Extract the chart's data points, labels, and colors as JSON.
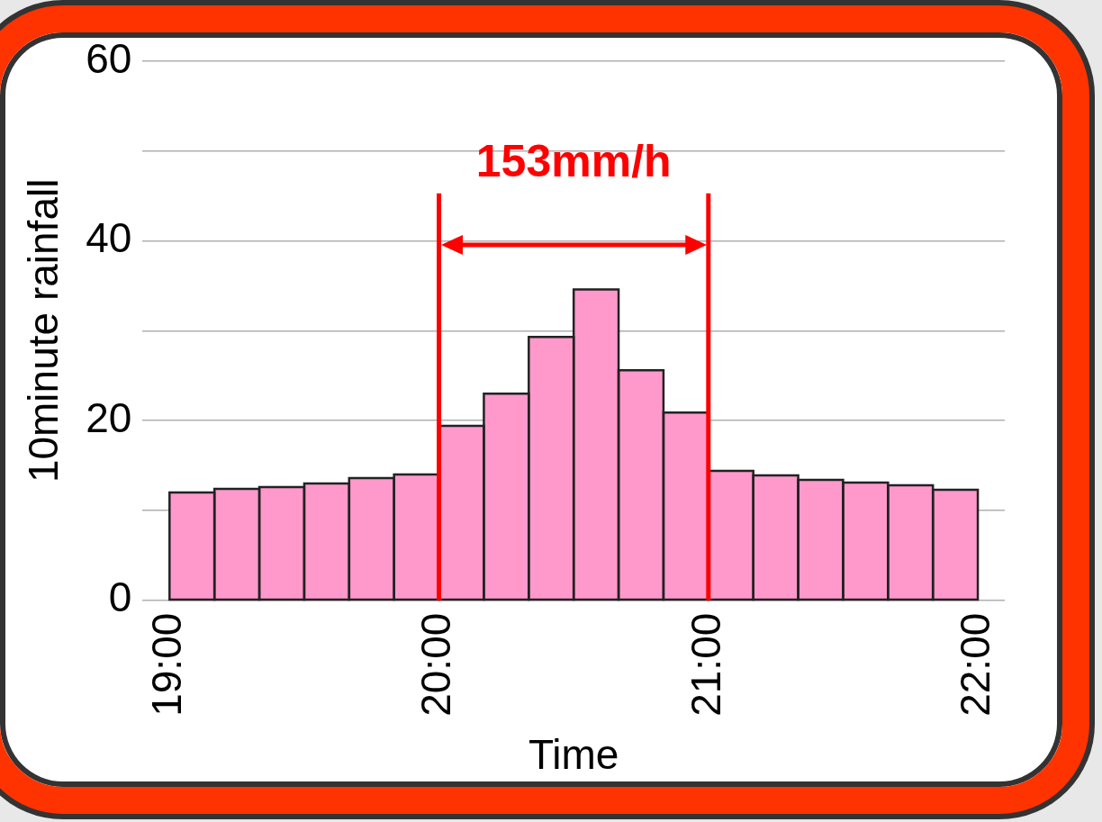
{
  "chart_data": {
    "type": "histogram",
    "xlabel": "Time",
    "ylabel": "10minute rainfall",
    "bins": [
      19,
      19.1667,
      19.3333,
      19.5,
      19.6667,
      19.8333,
      20,
      20.1667,
      20.3333,
      20.5,
      20.6667,
      20.8333,
      21,
      21.1667,
      21.3333,
      21.5,
      21.6667,
      21.8333,
      22
    ],
    "values": [
      12.0,
      12.4,
      12.6,
      13.0,
      13.6,
      14.0,
      19.4,
      23.0,
      29.3,
      34.6,
      25.6,
      20.9,
      14.4,
      13.9,
      13.4,
      13.1,
      12.8,
      12.3
    ],
    "color": "#ff99cc",
    "xlim": [
      18.9,
      22.1
    ],
    "xticks": [
      {
        "value": 19,
        "label": "19:00"
      },
      {
        "value": 20,
        "label": "20:00"
      },
      {
        "value": 21,
        "label": "21:00"
      },
      {
        "value": 22,
        "label": "22:00"
      }
    ],
    "ylim": [
      0,
      60
    ],
    "yticks": [
      0,
      {
        "value": 10,
        "label": null
      },
      20,
      {
        "value": 30,
        "label": null
      },
      40,
      {
        "value": 50,
        "label": null
      },
      60
    ],
    "grid": "y",
    "legend": false,
    "ref_lines": [
      {
        "axis": "x",
        "value": 20,
        "color": "#ff0000"
      },
      {
        "axis": "x",
        "value": 21,
        "color": "#ff0000"
      }
    ],
    "annotations": [
      "153mm/h"
    ]
  }
}
